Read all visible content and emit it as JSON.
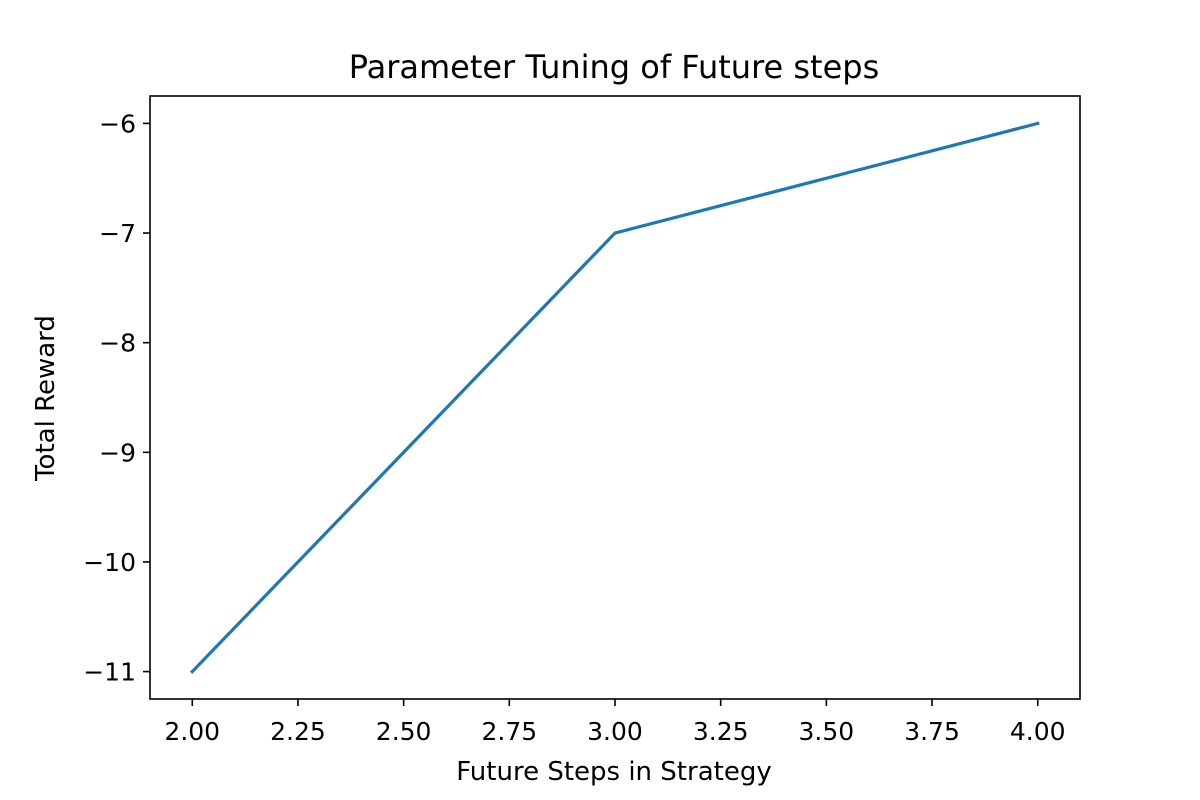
{
  "chart_data": {
    "type": "line",
    "title": "Parameter Tuning of Future steps",
    "xlabel": "Future Steps in Strategy",
    "ylabel": "Total Reward",
    "x": [
      2.0,
      3.0,
      4.0
    ],
    "series": [
      {
        "values": [
          -11,
          -7,
          -6
        ],
        "color": "#1f77b4"
      }
    ],
    "xlim": [
      1.9,
      4.1
    ],
    "ylim": [
      -11.25,
      -5.75
    ],
    "xticks": [
      2.0,
      2.25,
      2.5,
      2.75,
      3.0,
      3.25,
      3.5,
      3.75,
      4.0
    ],
    "xtick_labels": [
      "2.00",
      "2.25",
      "2.50",
      "2.75",
      "3.00",
      "3.25",
      "3.50",
      "3.75",
      "4.00"
    ],
    "yticks": [
      -11,
      -10,
      -9,
      -8,
      -7,
      -6
    ],
    "ytick_labels": [
      "−11",
      "−10",
      "−9",
      "−8",
      "−7",
      "−6"
    ],
    "grid": false,
    "legend": false
  }
}
